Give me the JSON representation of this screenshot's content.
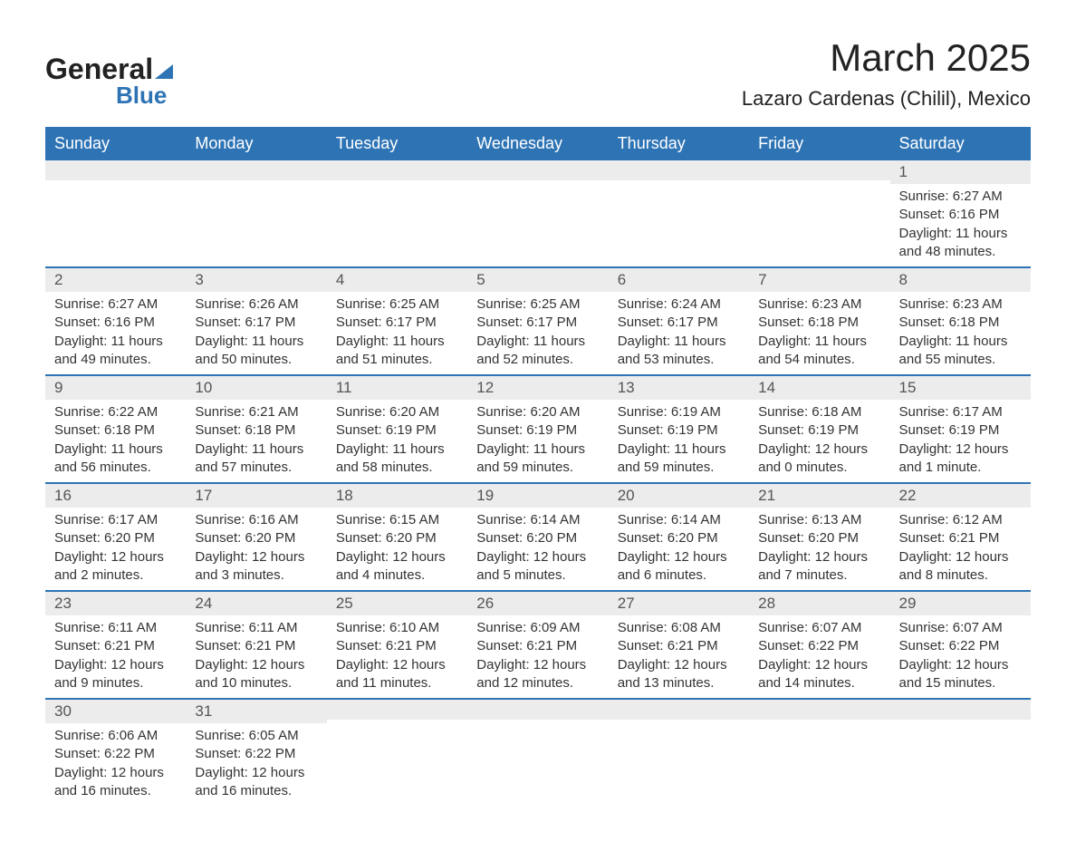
{
  "logo": {
    "text1": "General",
    "text2": "Blue"
  },
  "title": "March 2025",
  "location": "Lazaro Cardenas (Chilil), Mexico",
  "dayHeaders": [
    "Sunday",
    "Monday",
    "Tuesday",
    "Wednesday",
    "Thursday",
    "Friday",
    "Saturday"
  ],
  "colors": {
    "headerBg": "#2e74b5",
    "headerText": "#ffffff",
    "dayBg": "#ececec",
    "rowBorder": "#2e74b5",
    "bodyText": "#333333",
    "pageBg": "#ffffff"
  },
  "typography": {
    "titleFontSize": 42,
    "locationFontSize": 22,
    "headerFontSize": 18,
    "cellFontSize": 15,
    "dayNumFontSize": 17,
    "fontFamily": "Arial"
  },
  "weeks": [
    [
      {
        "day": "",
        "sunrise": "",
        "sunset": "",
        "daylight": ""
      },
      {
        "day": "",
        "sunrise": "",
        "sunset": "",
        "daylight": ""
      },
      {
        "day": "",
        "sunrise": "",
        "sunset": "",
        "daylight": ""
      },
      {
        "day": "",
        "sunrise": "",
        "sunset": "",
        "daylight": ""
      },
      {
        "day": "",
        "sunrise": "",
        "sunset": "",
        "daylight": ""
      },
      {
        "day": "",
        "sunrise": "",
        "sunset": "",
        "daylight": ""
      },
      {
        "day": "1",
        "sunrise": "Sunrise: 6:27 AM",
        "sunset": "Sunset: 6:16 PM",
        "daylight": "Daylight: 11 hours and 48 minutes."
      }
    ],
    [
      {
        "day": "2",
        "sunrise": "Sunrise: 6:27 AM",
        "sunset": "Sunset: 6:16 PM",
        "daylight": "Daylight: 11 hours and 49 minutes."
      },
      {
        "day": "3",
        "sunrise": "Sunrise: 6:26 AM",
        "sunset": "Sunset: 6:17 PM",
        "daylight": "Daylight: 11 hours and 50 minutes."
      },
      {
        "day": "4",
        "sunrise": "Sunrise: 6:25 AM",
        "sunset": "Sunset: 6:17 PM",
        "daylight": "Daylight: 11 hours and 51 minutes."
      },
      {
        "day": "5",
        "sunrise": "Sunrise: 6:25 AM",
        "sunset": "Sunset: 6:17 PM",
        "daylight": "Daylight: 11 hours and 52 minutes."
      },
      {
        "day": "6",
        "sunrise": "Sunrise: 6:24 AM",
        "sunset": "Sunset: 6:17 PM",
        "daylight": "Daylight: 11 hours and 53 minutes."
      },
      {
        "day": "7",
        "sunrise": "Sunrise: 6:23 AM",
        "sunset": "Sunset: 6:18 PM",
        "daylight": "Daylight: 11 hours and 54 minutes."
      },
      {
        "day": "8",
        "sunrise": "Sunrise: 6:23 AM",
        "sunset": "Sunset: 6:18 PM",
        "daylight": "Daylight: 11 hours and 55 minutes."
      }
    ],
    [
      {
        "day": "9",
        "sunrise": "Sunrise: 6:22 AM",
        "sunset": "Sunset: 6:18 PM",
        "daylight": "Daylight: 11 hours and 56 minutes."
      },
      {
        "day": "10",
        "sunrise": "Sunrise: 6:21 AM",
        "sunset": "Sunset: 6:18 PM",
        "daylight": "Daylight: 11 hours and 57 minutes."
      },
      {
        "day": "11",
        "sunrise": "Sunrise: 6:20 AM",
        "sunset": "Sunset: 6:19 PM",
        "daylight": "Daylight: 11 hours and 58 minutes."
      },
      {
        "day": "12",
        "sunrise": "Sunrise: 6:20 AM",
        "sunset": "Sunset: 6:19 PM",
        "daylight": "Daylight: 11 hours and 59 minutes."
      },
      {
        "day": "13",
        "sunrise": "Sunrise: 6:19 AM",
        "sunset": "Sunset: 6:19 PM",
        "daylight": "Daylight: 11 hours and 59 minutes."
      },
      {
        "day": "14",
        "sunrise": "Sunrise: 6:18 AM",
        "sunset": "Sunset: 6:19 PM",
        "daylight": "Daylight: 12 hours and 0 minutes."
      },
      {
        "day": "15",
        "sunrise": "Sunrise: 6:17 AM",
        "sunset": "Sunset: 6:19 PM",
        "daylight": "Daylight: 12 hours and 1 minute."
      }
    ],
    [
      {
        "day": "16",
        "sunrise": "Sunrise: 6:17 AM",
        "sunset": "Sunset: 6:20 PM",
        "daylight": "Daylight: 12 hours and 2 minutes."
      },
      {
        "day": "17",
        "sunrise": "Sunrise: 6:16 AM",
        "sunset": "Sunset: 6:20 PM",
        "daylight": "Daylight: 12 hours and 3 minutes."
      },
      {
        "day": "18",
        "sunrise": "Sunrise: 6:15 AM",
        "sunset": "Sunset: 6:20 PM",
        "daylight": "Daylight: 12 hours and 4 minutes."
      },
      {
        "day": "19",
        "sunrise": "Sunrise: 6:14 AM",
        "sunset": "Sunset: 6:20 PM",
        "daylight": "Daylight: 12 hours and 5 minutes."
      },
      {
        "day": "20",
        "sunrise": "Sunrise: 6:14 AM",
        "sunset": "Sunset: 6:20 PM",
        "daylight": "Daylight: 12 hours and 6 minutes."
      },
      {
        "day": "21",
        "sunrise": "Sunrise: 6:13 AM",
        "sunset": "Sunset: 6:20 PM",
        "daylight": "Daylight: 12 hours and 7 minutes."
      },
      {
        "day": "22",
        "sunrise": "Sunrise: 6:12 AM",
        "sunset": "Sunset: 6:21 PM",
        "daylight": "Daylight: 12 hours and 8 minutes."
      }
    ],
    [
      {
        "day": "23",
        "sunrise": "Sunrise: 6:11 AM",
        "sunset": "Sunset: 6:21 PM",
        "daylight": "Daylight: 12 hours and 9 minutes."
      },
      {
        "day": "24",
        "sunrise": "Sunrise: 6:11 AM",
        "sunset": "Sunset: 6:21 PM",
        "daylight": "Daylight: 12 hours and 10 minutes."
      },
      {
        "day": "25",
        "sunrise": "Sunrise: 6:10 AM",
        "sunset": "Sunset: 6:21 PM",
        "daylight": "Daylight: 12 hours and 11 minutes."
      },
      {
        "day": "26",
        "sunrise": "Sunrise: 6:09 AM",
        "sunset": "Sunset: 6:21 PM",
        "daylight": "Daylight: 12 hours and 12 minutes."
      },
      {
        "day": "27",
        "sunrise": "Sunrise: 6:08 AM",
        "sunset": "Sunset: 6:21 PM",
        "daylight": "Daylight: 12 hours and 13 minutes."
      },
      {
        "day": "28",
        "sunrise": "Sunrise: 6:07 AM",
        "sunset": "Sunset: 6:22 PM",
        "daylight": "Daylight: 12 hours and 14 minutes."
      },
      {
        "day": "29",
        "sunrise": "Sunrise: 6:07 AM",
        "sunset": "Sunset: 6:22 PM",
        "daylight": "Daylight: 12 hours and 15 minutes."
      }
    ],
    [
      {
        "day": "30",
        "sunrise": "Sunrise: 6:06 AM",
        "sunset": "Sunset: 6:22 PM",
        "daylight": "Daylight: 12 hours and 16 minutes."
      },
      {
        "day": "31",
        "sunrise": "Sunrise: 6:05 AM",
        "sunset": "Sunset: 6:22 PM",
        "daylight": "Daylight: 12 hours and 16 minutes."
      },
      {
        "day": "",
        "sunrise": "",
        "sunset": "",
        "daylight": ""
      },
      {
        "day": "",
        "sunrise": "",
        "sunset": "",
        "daylight": ""
      },
      {
        "day": "",
        "sunrise": "",
        "sunset": "",
        "daylight": ""
      },
      {
        "day": "",
        "sunrise": "",
        "sunset": "",
        "daylight": ""
      },
      {
        "day": "",
        "sunrise": "",
        "sunset": "",
        "daylight": ""
      }
    ]
  ]
}
